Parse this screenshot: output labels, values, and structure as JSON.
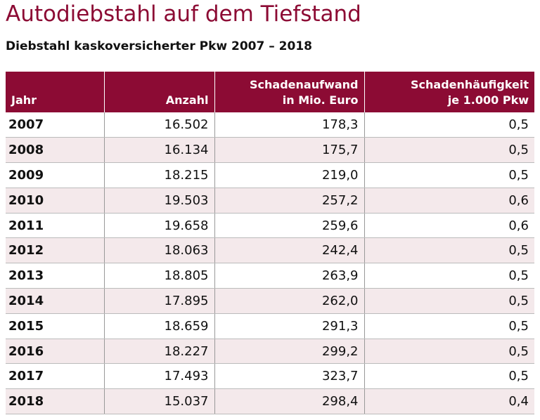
{
  "header": {
    "title": "Autodiebstahl auf dem Tiefstand",
    "subtitle": "Diebstahl kaskoversicherter Pkw 2007 – 2018"
  },
  "table": {
    "columns": [
      [
        "Jahr"
      ],
      [
        "Anzahl"
      ],
      [
        "Schadenaufwand",
        "in Mio. Euro"
      ],
      [
        "Schadenhäufigkeit",
        "je 1.000 Pkw"
      ]
    ],
    "rows": [
      [
        "2007",
        "16.502",
        "178,3",
        "0,5"
      ],
      [
        "2008",
        "16.134",
        "175,7",
        "0,5"
      ],
      [
        "2009",
        "18.215",
        "219,0",
        "0,5"
      ],
      [
        "2010",
        "19.503",
        "257,2",
        "0,6"
      ],
      [
        "2011",
        "19.658",
        "259,6",
        "0,6"
      ],
      [
        "2012",
        "18.063",
        "242,4",
        "0,5"
      ],
      [
        "2013",
        "18.805",
        "263,9",
        "0,5"
      ],
      [
        "2014",
        "17.895",
        "262,0",
        "0,5"
      ],
      [
        "2015",
        "18.659",
        "291,3",
        "0,5"
      ],
      [
        "2016",
        "18.227",
        "299,2",
        "0,5"
      ],
      [
        "2017",
        "17.493",
        "323,7",
        "0,5"
      ],
      [
        "2018",
        "15.037",
        "298,4",
        "0,4"
      ]
    ]
  }
}
